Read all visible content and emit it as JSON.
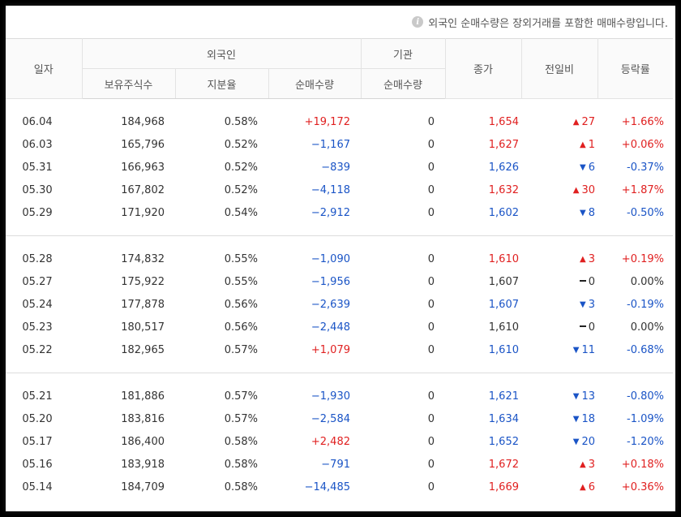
{
  "notice": "외국인 순매수량은 장외거래를 포함한 매매수량입니다.",
  "colors": {
    "up": "#e02020",
    "down": "#1a54c6",
    "flat": "#333333"
  },
  "headers": {
    "date": "일자",
    "foreign": "외국인",
    "holdings": "보유주식수",
    "share_ratio": "지분율",
    "foreign_net": "순매수량",
    "institution": "기관",
    "inst_net": "순매수량",
    "close": "종가",
    "change": "전일비",
    "rate": "등락률"
  },
  "groups": [
    [
      {
        "date": "06.04",
        "holdings": "184,968",
        "ratio": "0.58%",
        "foreign_net": "+19,172",
        "foreign_dir": "up",
        "inst_net": "0",
        "close": "1,654",
        "dir": "up",
        "change": "27",
        "rate": "+1.66%"
      },
      {
        "date": "06.03",
        "holdings": "165,796",
        "ratio": "0.52%",
        "foreign_net": "−1,167",
        "foreign_dir": "down",
        "inst_net": "0",
        "close": "1,627",
        "dir": "up",
        "change": "1",
        "rate": "+0.06%"
      },
      {
        "date": "05.31",
        "holdings": "166,963",
        "ratio": "0.52%",
        "foreign_net": "−839",
        "foreign_dir": "down",
        "inst_net": "0",
        "close": "1,626",
        "dir": "down",
        "change": "6",
        "rate": "-0.37%"
      },
      {
        "date": "05.30",
        "holdings": "167,802",
        "ratio": "0.52%",
        "foreign_net": "−4,118",
        "foreign_dir": "down",
        "inst_net": "0",
        "close": "1,632",
        "dir": "up",
        "change": "30",
        "rate": "+1.87%"
      },
      {
        "date": "05.29",
        "holdings": "171,920",
        "ratio": "0.54%",
        "foreign_net": "−2,912",
        "foreign_dir": "down",
        "inst_net": "0",
        "close": "1,602",
        "dir": "down",
        "change": "8",
        "rate": "-0.50%"
      }
    ],
    [
      {
        "date": "05.28",
        "holdings": "174,832",
        "ratio": "0.55%",
        "foreign_net": "−1,090",
        "foreign_dir": "down",
        "inst_net": "0",
        "close": "1,610",
        "dir": "up",
        "change": "3",
        "rate": "+0.19%"
      },
      {
        "date": "05.27",
        "holdings": "175,922",
        "ratio": "0.55%",
        "foreign_net": "−1,956",
        "foreign_dir": "down",
        "inst_net": "0",
        "close": "1,607",
        "dir": "flat",
        "change": "0",
        "rate": "0.00%"
      },
      {
        "date": "05.24",
        "holdings": "177,878",
        "ratio": "0.56%",
        "foreign_net": "−2,639",
        "foreign_dir": "down",
        "inst_net": "0",
        "close": "1,607",
        "dir": "down",
        "change": "3",
        "rate": "-0.19%"
      },
      {
        "date": "05.23",
        "holdings": "180,517",
        "ratio": "0.56%",
        "foreign_net": "−2,448",
        "foreign_dir": "down",
        "inst_net": "0",
        "close": "1,610",
        "dir": "flat",
        "change": "0",
        "rate": "0.00%"
      },
      {
        "date": "05.22",
        "holdings": "182,965",
        "ratio": "0.57%",
        "foreign_net": "+1,079",
        "foreign_dir": "up",
        "inst_net": "0",
        "close": "1,610",
        "dir": "down",
        "change": "11",
        "rate": "-0.68%"
      }
    ],
    [
      {
        "date": "05.21",
        "holdings": "181,886",
        "ratio": "0.57%",
        "foreign_net": "−1,930",
        "foreign_dir": "down",
        "inst_net": "0",
        "close": "1,621",
        "dir": "down",
        "change": "13",
        "rate": "-0.80%"
      },
      {
        "date": "05.20",
        "holdings": "183,816",
        "ratio": "0.57%",
        "foreign_net": "−2,584",
        "foreign_dir": "down",
        "inst_net": "0",
        "close": "1,634",
        "dir": "down",
        "change": "18",
        "rate": "-1.09%"
      },
      {
        "date": "05.17",
        "holdings": "186,400",
        "ratio": "0.58%",
        "foreign_net": "+2,482",
        "foreign_dir": "up",
        "inst_net": "0",
        "close": "1,652",
        "dir": "down",
        "change": "20",
        "rate": "-1.20%"
      },
      {
        "date": "05.16",
        "holdings": "183,918",
        "ratio": "0.58%",
        "foreign_net": "−791",
        "foreign_dir": "down",
        "inst_net": "0",
        "close": "1,672",
        "dir": "up",
        "change": "3",
        "rate": "+0.18%"
      },
      {
        "date": "05.14",
        "holdings": "184,709",
        "ratio": "0.58%",
        "foreign_net": "−14,485",
        "foreign_dir": "down",
        "inst_net": "0",
        "close": "1,669",
        "dir": "up",
        "change": "6",
        "rate": "+0.36%"
      }
    ]
  ]
}
